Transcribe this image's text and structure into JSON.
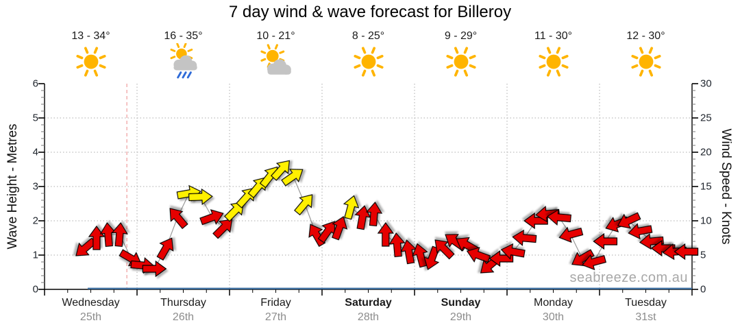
{
  "title": "7 day wind & wave forecast for Billeroy",
  "watermark": "seabreeze.com.au",
  "axes": {
    "left_title": "Wave Height - Metres",
    "right_title": "Wind Speed - Knots",
    "left_tick_labels": [
      "6",
      "5",
      "4",
      "3",
      "2",
      "1",
      "0"
    ],
    "right_tick_labels": [
      "30",
      "25",
      "20",
      "15",
      "10",
      "5",
      "0"
    ]
  },
  "days": [
    {
      "name": "Wednesday",
      "date": "25th",
      "temp": "13 - 34°",
      "icon": "sunny",
      "bold": false
    },
    {
      "name": "Thursday",
      "date": "26th",
      "temp": "16 - 35°",
      "icon": "sun-rain",
      "bold": false
    },
    {
      "name": "Friday",
      "date": "27th",
      "temp": "10 - 21°",
      "icon": "sun-cloud",
      "bold": false
    },
    {
      "name": "Saturday",
      "date": "28th",
      "temp": "8 - 25°",
      "icon": "sunny",
      "bold": true
    },
    {
      "name": "Sunday",
      "date": "29th",
      "temp": "9 - 29°",
      "icon": "sunny",
      "bold": true
    },
    {
      "name": "Monday",
      "date": "30th",
      "temp": "11 - 30°",
      "icon": "sunny",
      "bold": false
    },
    {
      "name": "Tuesday",
      "date": "31st",
      "temp": "12 - 30°",
      "icon": "sunny",
      "bold": false
    }
  ],
  "chart_data": {
    "type": "line",
    "title": "7 day wind & wave forecast for Billeroy",
    "x_categories": [
      "Wednesday 25th",
      "Thursday 26th",
      "Friday 27th",
      "Saturday 28th",
      "Sunday 29th",
      "Monday 30th",
      "Tuesday 31st"
    ],
    "left_axis": {
      "label": "Wave Height - Metres",
      "range": [
        0,
        6
      ],
      "major_step": 1
    },
    "right_axis": {
      "label": "Wind Speed - Knots",
      "range": [
        0,
        30
      ],
      "major_step": 5
    },
    "grid": true,
    "x_layout": {
      "days": 7,
      "points_per_day": 8,
      "first_point_index": 3,
      "total_slots": 56
    },
    "now_marker": {
      "day": 0,
      "fraction": 0.89
    },
    "series": [
      {
        "name": "wind_speed_knots",
        "axis": "right",
        "style": "direction-arrows",
        "dir_note": "degrees arrow points toward, 0=up/N, clockwise",
        "points": [
          {
            "i": 3,
            "kt": 6,
            "dir": 230,
            "c": "red"
          },
          {
            "i": 4,
            "kt": 7.5,
            "dir": 0,
            "c": "red"
          },
          {
            "i": 5,
            "kt": 8,
            "dir": 355,
            "c": "red"
          },
          {
            "i": 6,
            "kt": 8,
            "dir": 5,
            "c": "red"
          },
          {
            "i": 7,
            "kt": 4.5,
            "dir": 120,
            "c": "red"
          },
          {
            "i": 8,
            "kt": 3.5,
            "dir": 95,
            "c": "red"
          },
          {
            "i": 9,
            "kt": 3,
            "dir": 90,
            "c": "red"
          },
          {
            "i": 10,
            "kt": 6,
            "dir": 30,
            "c": "red"
          },
          {
            "i": 11,
            "kt": 10.5,
            "dir": 320,
            "c": "red"
          },
          {
            "i": 12,
            "kt": 14,
            "dir": 80,
            "c": "yellow"
          },
          {
            "i": 13,
            "kt": 13.5,
            "dir": 88,
            "c": "yellow"
          },
          {
            "i": 14,
            "kt": 10.5,
            "dir": 70,
            "c": "red"
          },
          {
            "i": 15,
            "kt": 9,
            "dir": 45,
            "c": "red"
          },
          {
            "i": 16,
            "kt": 11.5,
            "dir": 45,
            "c": "yellow"
          },
          {
            "i": 17,
            "kt": 13.5,
            "dir": 42,
            "c": "yellow"
          },
          {
            "i": 18,
            "kt": 15,
            "dir": 40,
            "c": "yellow"
          },
          {
            "i": 19,
            "kt": 16.5,
            "dir": 38,
            "c": "yellow"
          },
          {
            "i": 20,
            "kt": 17.5,
            "dir": 42,
            "c": "yellow"
          },
          {
            "i": 21,
            "kt": 16.5,
            "dir": 55,
            "c": "yellow"
          },
          {
            "i": 22,
            "kt": 12.5,
            "dir": 40,
            "c": "yellow"
          },
          {
            "i": 23,
            "kt": 8,
            "dir": 330,
            "c": "red"
          },
          {
            "i": 24,
            "kt": 8.5,
            "dir": 35,
            "c": "red"
          },
          {
            "i": 25,
            "kt": 9,
            "dir": 20,
            "c": "red"
          },
          {
            "i": 26,
            "kt": 12,
            "dir": 15,
            "c": "yellow"
          },
          {
            "i": 27,
            "kt": 10.5,
            "dir": 10,
            "c": "red"
          },
          {
            "i": 28,
            "kt": 11,
            "dir": 5,
            "c": "red"
          },
          {
            "i": 29,
            "kt": 8,
            "dir": 0,
            "c": "red"
          },
          {
            "i": 30,
            "kt": 6.5,
            "dir": 355,
            "c": "red"
          },
          {
            "i": 31,
            "kt": 5.5,
            "dir": 350,
            "c": "red"
          },
          {
            "i": 32,
            "kt": 5,
            "dir": 345,
            "c": "red"
          },
          {
            "i": 33,
            "kt": 4.5,
            "dir": 200,
            "c": "red"
          },
          {
            "i": 34,
            "kt": 6,
            "dir": 315,
            "c": "red"
          },
          {
            "i": 35,
            "kt": 7,
            "dir": 305,
            "c": "red"
          },
          {
            "i": 36,
            "kt": 6.5,
            "dir": 300,
            "c": "red"
          },
          {
            "i": 37,
            "kt": 5,
            "dir": 290,
            "c": "red"
          },
          {
            "i": 38,
            "kt": 3.5,
            "dir": 230,
            "c": "red"
          },
          {
            "i": 39,
            "kt": 4.5,
            "dir": 270,
            "c": "red"
          },
          {
            "i": 40,
            "kt": 5.5,
            "dir": 280,
            "c": "red"
          },
          {
            "i": 41,
            "kt": 7.5,
            "dir": 275,
            "c": "red"
          },
          {
            "i": 42,
            "kt": 10,
            "dir": 270,
            "c": "red"
          },
          {
            "i": 43,
            "kt": 11,
            "dir": 265,
            "c": "red"
          },
          {
            "i": 44,
            "kt": 10.5,
            "dir": 275,
            "c": "red"
          },
          {
            "i": 45,
            "kt": 8,
            "dir": 255,
            "c": "red"
          },
          {
            "i": 46,
            "kt": 4.5,
            "dir": 240,
            "c": "red"
          },
          {
            "i": 47,
            "kt": 4,
            "dir": 255,
            "c": "red"
          },
          {
            "i": 48,
            "kt": 7,
            "dir": 270,
            "c": "red"
          },
          {
            "i": 49,
            "kt": 9.5,
            "dir": 250,
            "c": "red"
          },
          {
            "i": 50,
            "kt": 10,
            "dir": 245,
            "c": "red"
          },
          {
            "i": 51,
            "kt": 8.5,
            "dir": 260,
            "c": "red"
          },
          {
            "i": 52,
            "kt": 7,
            "dir": 265,
            "c": "red"
          },
          {
            "i": 53,
            "kt": 6,
            "dir": 270,
            "c": "red"
          },
          {
            "i": 54,
            "kt": 5.5,
            "dir": 265,
            "c": "red"
          },
          {
            "i": 55,
            "kt": 5.5,
            "dir": 270,
            "c": "red"
          }
        ]
      },
      {
        "name": "wave_height_metres",
        "axis": "left",
        "style": "flat-line",
        "value": 0
      }
    ],
    "colors": {
      "red_arrow": "#E60000",
      "yellow_arrow": "#FFF000",
      "arrow_outline": "#000000",
      "wave_line": "#3D6E9E",
      "now_line": "#F0A3A3",
      "grid": "#ABABAB",
      "connector": "#999999",
      "sun": "#FFB400",
      "cloud": "#C4C4C4",
      "rain": "#2F6BD8"
    }
  }
}
